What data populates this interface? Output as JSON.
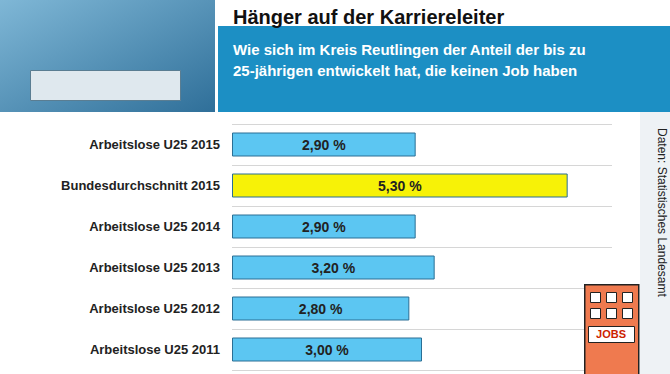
{
  "chart_data": {
    "type": "bar",
    "orientation": "horizontal",
    "title": "Hänger auf der Karriereleiter",
    "subtitle": "Wie sich im Kreis Reutlingen der Anteil der bis zu 25-jährigen entwickelt hat, die keinen Job haben",
    "categories": [
      "Arbeitslose U25 2015",
      "Bundesdurchschnitt 2015",
      "Arbeitslose U25 2014",
      "Arbeitslose U25 2013",
      "Arbeitslose U25 2012",
      "Arbeitslose U25 2011"
    ],
    "values": [
      2.9,
      5.3,
      2.9,
      3.2,
      2.8,
      3.0
    ],
    "value_labels": [
      "2,90 %",
      "5,30 %",
      "2,90 %",
      "3,20 %",
      "2,80 %",
      "3,00 %"
    ],
    "colors": [
      "#5cc6f2",
      "#f7f207",
      "#5cc6f2",
      "#5cc6f2",
      "#5cc6f2",
      "#5cc6f2"
    ],
    "xlim": [
      0,
      6
    ],
    "data_labels": true,
    "tick_labels": "y",
    "annotations": [
      "Daten: Statistisches Landesamt",
      "JOBS"
    ]
  }
}
